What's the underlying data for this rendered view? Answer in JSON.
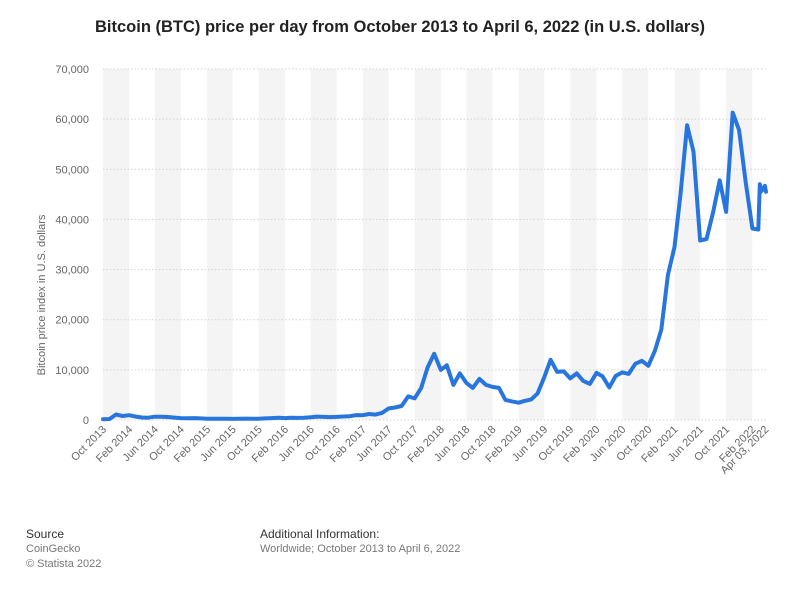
{
  "title": "Bitcoin (BTC) price per day from October 2013 to April 6, 2022 (in U.S. dollars)",
  "footer": {
    "source_heading": "Source",
    "source_name": "CoinGecko",
    "copyright": "© Statista 2022",
    "info_heading": "Additional Information:",
    "info_text": "Worldwide; October 2013 to April 6, 2022"
  },
  "colors": {
    "line": "#2876dd",
    "grid": "#d4d4d4",
    "band": "#f4f4f4",
    "axis_text": "#666666"
  },
  "chart_data": {
    "type": "line",
    "title": "Bitcoin (BTC) price per day from October 2013 to April 6, 2022 (in U.S. dollars)",
    "ylabel": "Bitcoin price index in U.S. dollars",
    "xlabel": "",
    "ylim": [
      0,
      70000
    ],
    "yticks": [
      0,
      10000,
      20000,
      30000,
      40000,
      50000,
      60000,
      70000
    ],
    "ytick_labels": [
      "0",
      "10,000",
      "20,000",
      "30,000",
      "40,000",
      "50,000",
      "60,000",
      "70,000"
    ],
    "xtick_labels": [
      "Oct 2013",
      "Feb 2014",
      "Jun 2014",
      "Oct 2014",
      "Feb 2015",
      "Jun 2015",
      "Oct 2015",
      "Feb 2016",
      "Jun 2016",
      "Oct 2016",
      "Feb 2017",
      "Jun 2017",
      "Oct 2017",
      "Feb 2018",
      "Jun 2018",
      "Oct 2018",
      "Feb 2019",
      "Jun 2019",
      "Oct 2019",
      "Feb 2020",
      "Jun 2020",
      "Oct 2020",
      "Feb 2021",
      "Jun 2021",
      "Oct 2021",
      "Feb 2022",
      "Apr 03, 2022"
    ],
    "grid": true,
    "series": [
      {
        "values": [
          {
            "x": "2013-10-01",
            "y": 130
          },
          {
            "x": "2013-11-01",
            "y": 200
          },
          {
            "x": "2013-12-01",
            "y": 1100
          },
          {
            "x": "2014-01-01",
            "y": 800
          },
          {
            "x": "2014-02-01",
            "y": 950
          },
          {
            "x": "2014-03-01",
            "y": 700
          },
          {
            "x": "2014-04-01",
            "y": 500
          },
          {
            "x": "2014-05-01",
            "y": 450
          },
          {
            "x": "2014-06-01",
            "y": 650
          },
          {
            "x": "2014-07-01",
            "y": 630
          },
          {
            "x": "2014-08-01",
            "y": 590
          },
          {
            "x": "2014-09-01",
            "y": 480
          },
          {
            "x": "2014-10-01",
            "y": 380
          },
          {
            "x": "2014-11-01",
            "y": 350
          },
          {
            "x": "2014-12-01",
            "y": 370
          },
          {
            "x": "2015-01-01",
            "y": 320
          },
          {
            "x": "2015-02-01",
            "y": 230
          },
          {
            "x": "2015-03-01",
            "y": 260
          },
          {
            "x": "2015-04-01",
            "y": 245
          },
          {
            "x": "2015-05-01",
            "y": 235
          },
          {
            "x": "2015-06-01",
            "y": 225
          },
          {
            "x": "2015-07-01",
            "y": 260
          },
          {
            "x": "2015-08-01",
            "y": 280
          },
          {
            "x": "2015-09-01",
            "y": 230
          },
          {
            "x": "2015-10-01",
            "y": 240
          },
          {
            "x": "2015-11-01",
            "y": 310
          },
          {
            "x": "2015-12-01",
            "y": 380
          },
          {
            "x": "2016-01-01",
            "y": 430
          },
          {
            "x": "2016-02-01",
            "y": 370
          },
          {
            "x": "2016-03-01",
            "y": 430
          },
          {
            "x": "2016-04-01",
            "y": 420
          },
          {
            "x": "2016-05-01",
            "y": 450
          },
          {
            "x": "2016-06-01",
            "y": 530
          },
          {
            "x": "2016-07-01",
            "y": 670
          },
          {
            "x": "2016-08-01",
            "y": 620
          },
          {
            "x": "2016-09-01",
            "y": 570
          },
          {
            "x": "2016-10-01",
            "y": 610
          },
          {
            "x": "2016-11-01",
            "y": 700
          },
          {
            "x": "2016-12-01",
            "y": 750
          },
          {
            "x": "2017-01-01",
            "y": 980
          },
          {
            "x": "2017-02-01",
            "y": 960
          },
          {
            "x": "2017-03-01",
            "y": 1200
          },
          {
            "x": "2017-04-01",
            "y": 1070
          },
          {
            "x": "2017-05-01",
            "y": 1400
          },
          {
            "x": "2017-06-01",
            "y": 2300
          },
          {
            "x": "2017-07-01",
            "y": 2500
          },
          {
            "x": "2017-08-01",
            "y": 2800
          },
          {
            "x": "2017-09-01",
            "y": 4700
          },
          {
            "x": "2017-10-01",
            "y": 4300
          },
          {
            "x": "2017-11-01",
            "y": 6400
          },
          {
            "x": "2017-12-01",
            "y": 10500
          },
          {
            "x": "2018-01-01",
            "y": 13200
          },
          {
            "x": "2018-02-01",
            "y": 10000
          },
          {
            "x": "2018-03-01",
            "y": 10900
          },
          {
            "x": "2018-04-01",
            "y": 7000
          },
          {
            "x": "2018-05-01",
            "y": 9300
          },
          {
            "x": "2018-06-01",
            "y": 7400
          },
          {
            "x": "2018-07-01",
            "y": 6400
          },
          {
            "x": "2018-08-01",
            "y": 8200
          },
          {
            "x": "2018-09-01",
            "y": 7000
          },
          {
            "x": "2018-10-01",
            "y": 6600
          },
          {
            "x": "2018-11-01",
            "y": 6400
          },
          {
            "x": "2018-12-01",
            "y": 4000
          },
          {
            "x": "2019-01-01",
            "y": 3700
          },
          {
            "x": "2019-02-01",
            "y": 3450
          },
          {
            "x": "2019-03-01",
            "y": 3800
          },
          {
            "x": "2019-04-01",
            "y": 4100
          },
          {
            "x": "2019-05-01",
            "y": 5300
          },
          {
            "x": "2019-06-01",
            "y": 8500
          },
          {
            "x": "2019-07-01",
            "y": 12000
          },
          {
            "x": "2019-08-01",
            "y": 9600
          },
          {
            "x": "2019-09-01",
            "y": 9700
          },
          {
            "x": "2019-10-01",
            "y": 8300
          },
          {
            "x": "2019-11-01",
            "y": 9300
          },
          {
            "x": "2019-12-01",
            "y": 7800
          },
          {
            "x": "2020-01-01",
            "y": 7200
          },
          {
            "x": "2020-02-01",
            "y": 9400
          },
          {
            "x": "2020-03-01",
            "y": 8700
          },
          {
            "x": "2020-04-01",
            "y": 6500
          },
          {
            "x": "2020-05-01",
            "y": 8800
          },
          {
            "x": "2020-06-01",
            "y": 9500
          },
          {
            "x": "2020-07-01",
            "y": 9200
          },
          {
            "x": "2020-08-01",
            "y": 11200
          },
          {
            "x": "2020-09-01",
            "y": 11800
          },
          {
            "x": "2020-10-01",
            "y": 10800
          },
          {
            "x": "2020-11-01",
            "y": 13800
          },
          {
            "x": "2020-12-01",
            "y": 18000
          },
          {
            "x": "2021-01-01",
            "y": 28900
          },
          {
            "x": "2021-02-01",
            "y": 34500
          },
          {
            "x": "2021-03-01",
            "y": 45000
          },
          {
            "x": "2021-04-01",
            "y": 58800
          },
          {
            "x": "2021-05-01",
            "y": 53500
          },
          {
            "x": "2021-06-01",
            "y": 35800
          },
          {
            "x": "2021-07-01",
            "y": 36100
          },
          {
            "x": "2021-08-01",
            "y": 41400
          },
          {
            "x": "2021-09-01",
            "y": 47800
          },
          {
            "x": "2021-10-01",
            "y": 41500
          },
          {
            "x": "2021-11-01",
            "y": 61300
          },
          {
            "x": "2021-12-01",
            "y": 57800
          },
          {
            "x": "2022-01-01",
            "y": 47400
          },
          {
            "x": "2022-02-01",
            "y": 38200
          },
          {
            "x": "2022-03-01",
            "y": 38000
          },
          {
            "x": "2022-03-08",
            "y": 47000
          },
          {
            "x": "2022-03-13",
            "y": 45500
          },
          {
            "x": "2022-03-18",
            "y": 46300
          },
          {
            "x": "2022-03-23",
            "y": 45900
          },
          {
            "x": "2022-03-27",
            "y": 46400
          },
          {
            "x": "2022-04-01",
            "y": 46700
          },
          {
            "x": "2022-04-06",
            "y": 45500
          }
        ]
      }
    ]
  }
}
